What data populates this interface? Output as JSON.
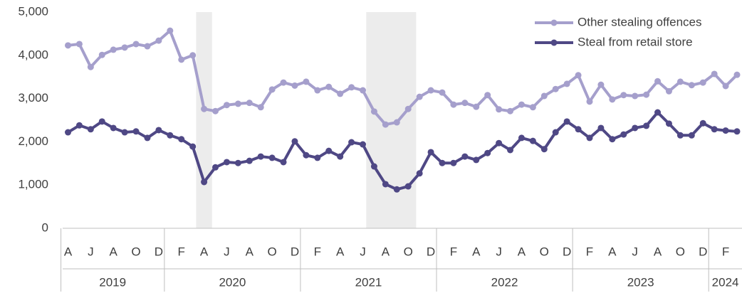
{
  "chart_data": {
    "type": "line",
    "categories": [
      "A",
      null,
      "J",
      null,
      "A",
      null,
      "O",
      null,
      "D",
      null,
      "F",
      null,
      "A",
      null,
      "J",
      null,
      "A",
      null,
      "O",
      null,
      "D",
      null,
      "F",
      null,
      "A",
      null,
      "J",
      null,
      "A",
      null,
      "O",
      null,
      "D",
      null,
      "F",
      null,
      "A",
      null,
      "J",
      null,
      "A",
      null,
      "O",
      null,
      "D",
      null,
      "F",
      null,
      "A",
      null,
      "J",
      null,
      "A",
      null,
      "O",
      null,
      "D",
      null,
      "F",
      null
    ],
    "x_groups": [
      "2019",
      "2020",
      "2021",
      "2022",
      "2023",
      "2024"
    ],
    "series": [
      {
        "name": "Other stealing offences",
        "color": "#a59fcc",
        "values": [
          4230,
          4260,
          3730,
          4010,
          4130,
          4180,
          4260,
          4210,
          4340,
          4570,
          3900,
          4000,
          2760,
          2710,
          2850,
          2880,
          2900,
          2800,
          3210,
          3370,
          3300,
          3390,
          3190,
          3270,
          3110,
          3260,
          3190,
          2700,
          2400,
          2450,
          2760,
          3040,
          3190,
          3140,
          2860,
          2900,
          2810,
          3080,
          2750,
          2710,
          2860,
          2800,
          3060,
          3220,
          3340,
          3540,
          2930,
          3320,
          2980,
          3080,
          3060,
          3090,
          3400,
          3170,
          3390,
          3310,
          3370,
          3570,
          3290,
          3550
        ]
      },
      {
        "name": "Steal from retail store",
        "color": "#4f4885",
        "values": [
          2220,
          2380,
          2290,
          2470,
          2320,
          2220,
          2240,
          2090,
          2270,
          2150,
          2060,
          1890,
          1070,
          1410,
          1530,
          1510,
          1560,
          1660,
          1630,
          1530,
          2010,
          1690,
          1630,
          1790,
          1660,
          1990,
          1940,
          1430,
          1020,
          900,
          970,
          1270,
          1760,
          1510,
          1510,
          1660,
          1580,
          1740,
          1970,
          1810,
          2090,
          2020,
          1830,
          2220,
          2470,
          2290,
          2090,
          2320,
          2060,
          2170,
          2320,
          2370,
          2680,
          2420,
          2150,
          2150,
          2430,
          2290,
          2260,
          2240
        ]
      }
    ],
    "ylim": [
      0,
      5000
    ],
    "yticks": [
      0,
      {
        "value": 1000,
        "label": "1,000"
      },
      {
        "value": 2000,
        "label": "2,000"
      },
      {
        "value": 3000,
        "label": "3,000"
      },
      {
        "value": 4000,
        "label": "4,000"
      },
      {
        "value": 5000,
        "label": "5,000"
      }
    ],
    "grid": false,
    "legend": "top-right"
  }
}
